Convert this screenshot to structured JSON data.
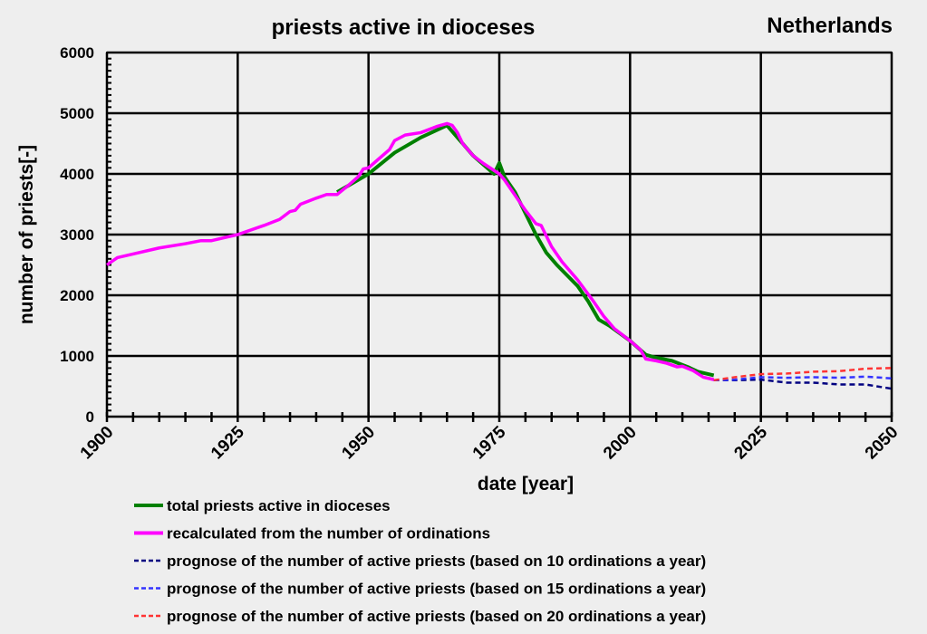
{
  "chart_data": {
    "type": "line",
    "title": "priests active in dioceses",
    "subtitle": "Netherlands",
    "xlabel": "date [year]",
    "ylabel": "number of priests[-]",
    "xlim": [
      1900,
      2050
    ],
    "ylim": [
      0,
      6000
    ],
    "xticks": [
      "1900",
      "1925",
      "1950",
      "1975",
      "2000",
      "2025",
      "2050"
    ],
    "yticks": [
      "0",
      "1000",
      "2000",
      "3000",
      "4000",
      "5000",
      "6000"
    ],
    "grid": true,
    "legend_position": "bottom",
    "series": [
      {
        "name": "total priests active in dioceses",
        "color": "#008000",
        "style": "solid",
        "x": [
          1944,
          1950,
          1955,
          1960,
          1965,
          1970,
          1974,
          1975,
          1976,
          1978,
          1980,
          1982,
          1984,
          1986,
          1990,
          1992,
          1994,
          1996,
          2000,
          2003,
          2005,
          2008,
          2011,
          2013,
          2016
        ],
        "y": [
          3700,
          4000,
          4350,
          4600,
          4800,
          4300,
          4000,
          4180,
          3950,
          3700,
          3350,
          3000,
          2700,
          2500,
          2150,
          1900,
          1600,
          1500,
          1250,
          1020,
          970,
          920,
          820,
          740,
          680
        ]
      },
      {
        "name": "recalculated from the number of ordinations",
        "color": "#ff00ff",
        "style": "solid",
        "x": [
          1900,
          1902,
          1905,
          1910,
          1915,
          1918,
          1920,
          1925,
          1930,
          1933,
          1935,
          1936,
          1937,
          1940,
          1942,
          1944,
          1946,
          1948,
          1949,
          1950,
          1952,
          1954,
          1955,
          1957,
          1960,
          1963,
          1965,
          1966,
          1967,
          1968,
          1970,
          1972,
          1975,
          1976,
          1978,
          1980,
          1982,
          1983,
          1985,
          1987,
          1990,
          1993,
          1995,
          1997,
          2000,
          2002,
          2003,
          2005,
          2007,
          2009,
          2010,
          2012,
          2014,
          2016
        ],
        "y": [
          2500,
          2620,
          2680,
          2780,
          2850,
          2900,
          2900,
          3000,
          3150,
          3250,
          3380,
          3400,
          3500,
          3600,
          3660,
          3660,
          3800,
          3950,
          4080,
          4100,
          4250,
          4400,
          4550,
          4640,
          4680,
          4780,
          4830,
          4800,
          4680,
          4500,
          4300,
          4170,
          4000,
          3900,
          3650,
          3400,
          3180,
          3150,
          2800,
          2550,
          2250,
          1900,
          1650,
          1450,
          1250,
          1100,
          950,
          920,
          880,
          820,
          830,
          760,
          650,
          610
        ]
      },
      {
        "name": "prognose of the number of active priests (based on 10 ordinations a year)",
        "color": "#000080",
        "style": "dashed",
        "x": [
          2016,
          2020,
          2025,
          2030,
          2035,
          2040,
          2045,
          2050
        ],
        "y": [
          600,
          600,
          610,
          560,
          560,
          530,
          530,
          460
        ]
      },
      {
        "name": "prognose of the number of active priests (based on 15 ordinations a year)",
        "color": "#3333ff",
        "style": "dashed",
        "x": [
          2016,
          2020,
          2025,
          2030,
          2035,
          2040,
          2045,
          2050
        ],
        "y": [
          600,
          610,
          650,
          640,
          650,
          640,
          660,
          630
        ]
      },
      {
        "name": "prognose of the number of active priests (based on 20 ordinations a year)",
        "color": "#ff3333",
        "style": "dashed",
        "x": [
          2016,
          2020,
          2025,
          2030,
          2035,
          2040,
          2045,
          2050
        ],
        "y": [
          600,
          650,
          700,
          710,
          740,
          750,
          790,
          800
        ]
      }
    ]
  }
}
